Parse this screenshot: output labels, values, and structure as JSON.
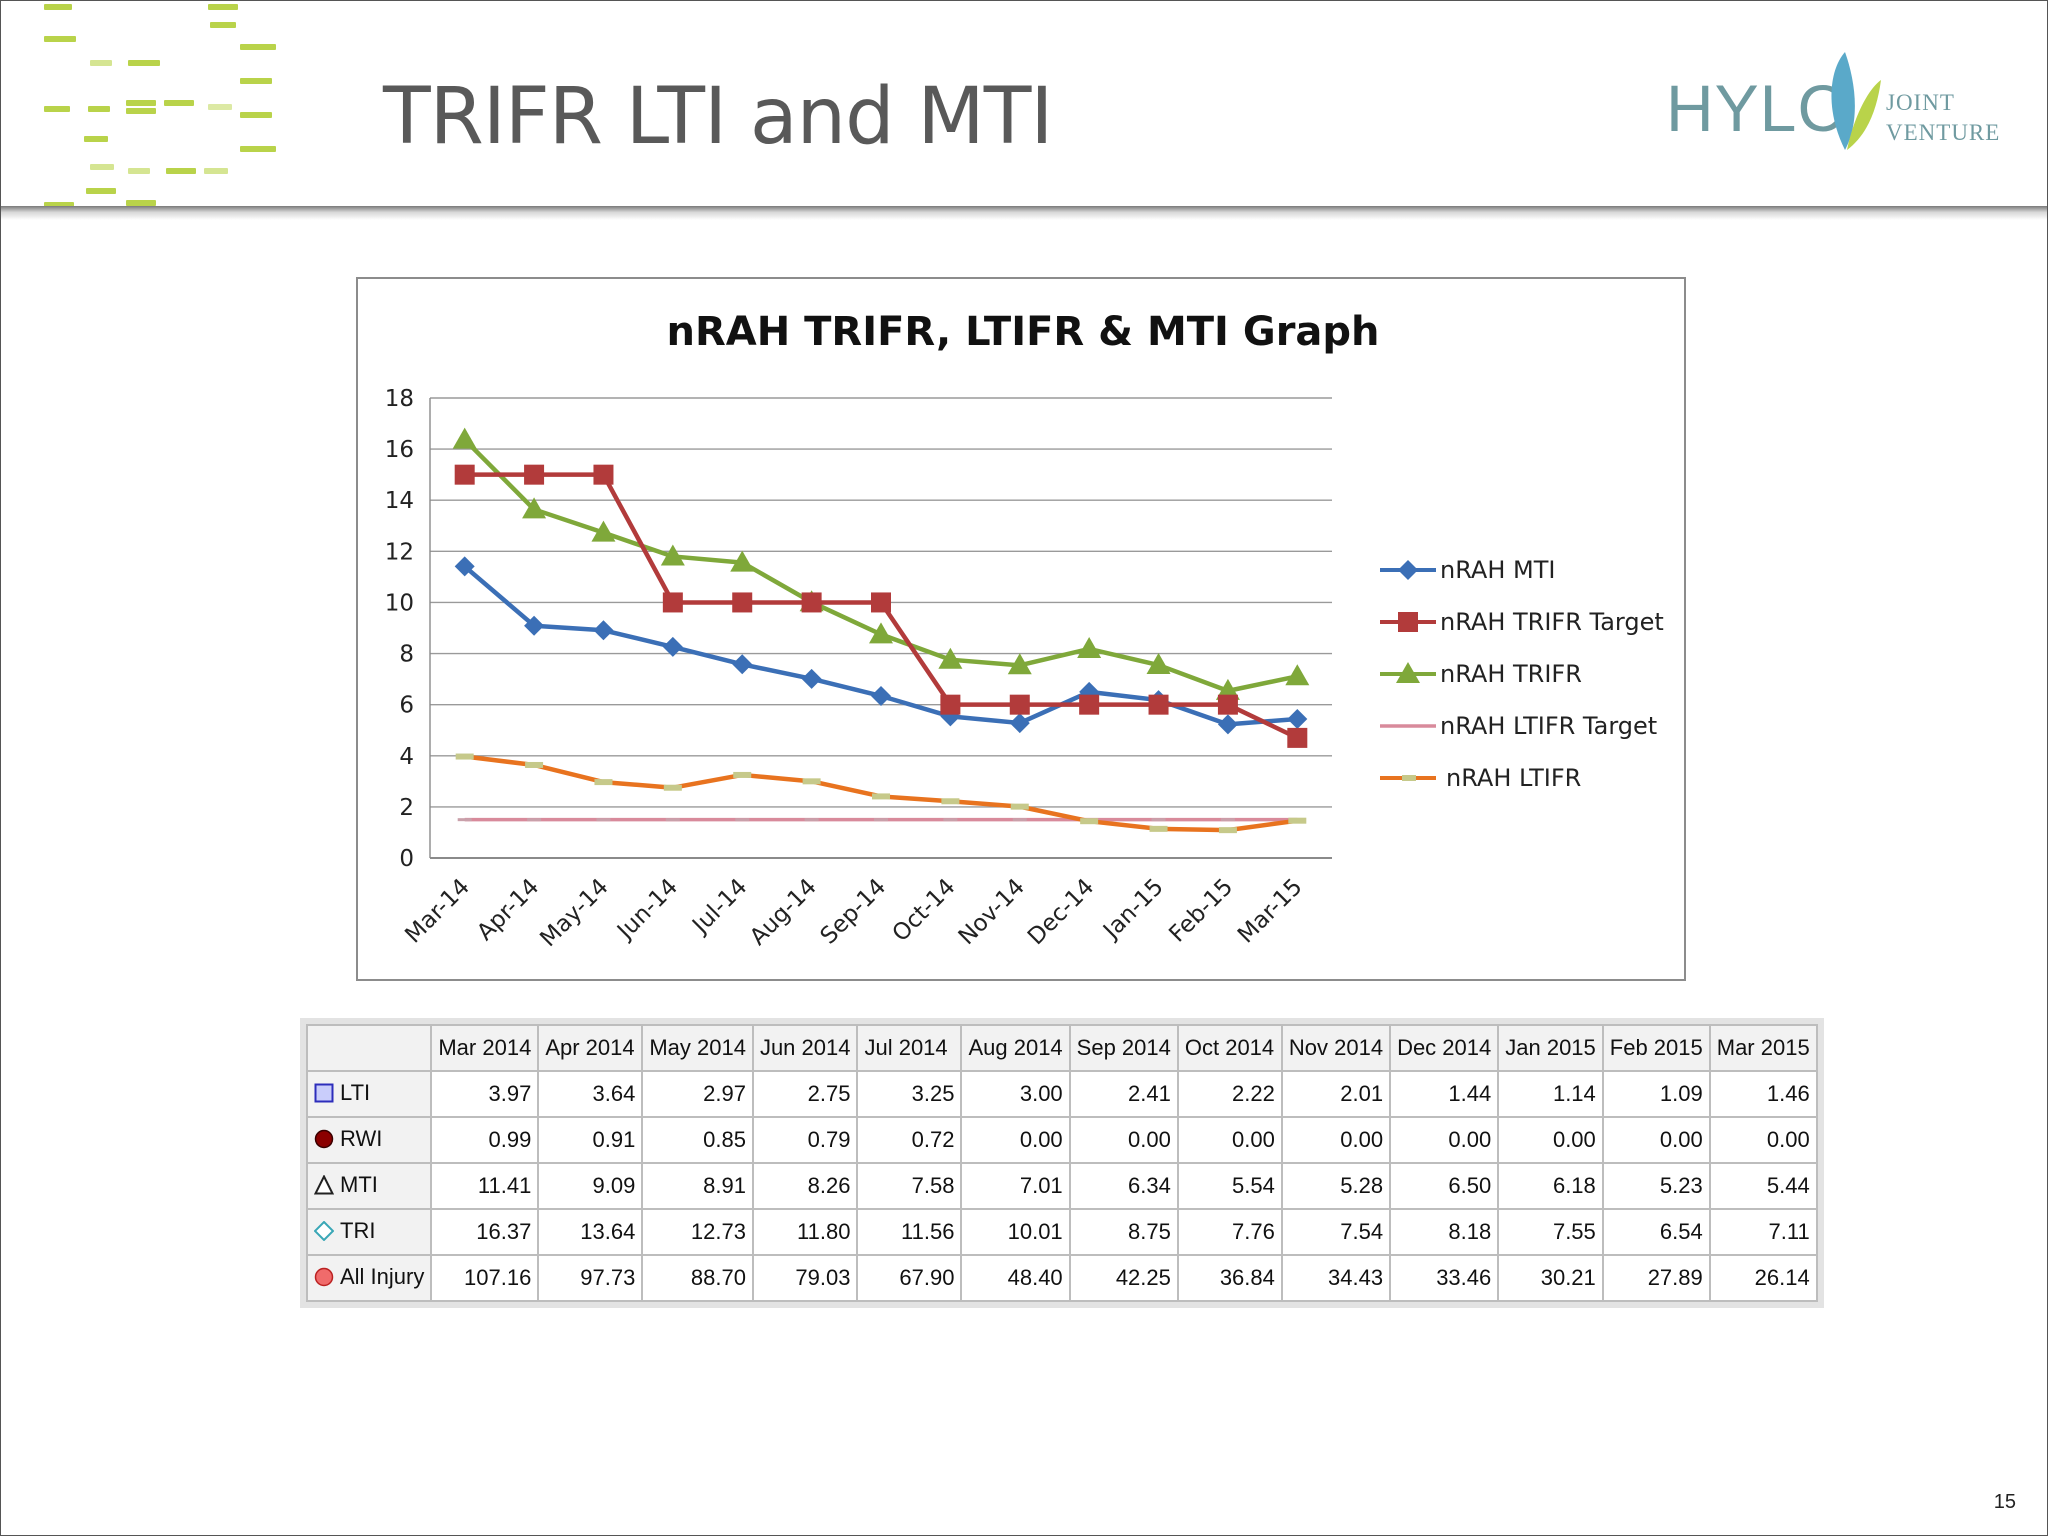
{
  "slide": {
    "title": "TRIFR LTI and MTI",
    "page_number": "15"
  },
  "logo": {
    "main": "HYLC",
    "sub1": "JOINT",
    "sub2": "VENTURE"
  },
  "colors": {
    "mti": "#3b6fb6",
    "trifr_target": "#b23b3b",
    "trifr": "#7fa83a",
    "ltifr_target": "#d88a9b",
    "ltifr": "#e8731f",
    "ltifr_marker": "#c6c98a",
    "deco_green": "#b9d34a",
    "logo_teal": "#6f9aa0"
  },
  "chart_data": {
    "type": "line",
    "title": "nRAH TRIFR, LTIFR & MTI Graph",
    "categories": [
      "Mar-14",
      "Apr-14",
      "May-14",
      "Jun-14",
      "Jul-14",
      "Aug-14",
      "Sep-14",
      "Oct-14",
      "Nov-14",
      "Dec-14",
      "Jan-15",
      "Feb-15",
      "Mar-15"
    ],
    "ylim": [
      0,
      18
    ],
    "yticks": [
      0,
      2,
      4,
      6,
      8,
      10,
      12,
      14,
      16,
      18
    ],
    "grid": true,
    "legend_position": "right",
    "series": [
      {
        "name": "nRAH MTI",
        "marker": "diamond",
        "values": [
          11.41,
          9.09,
          8.91,
          8.26,
          7.58,
          7.01,
          6.34,
          5.54,
          5.28,
          6.5,
          6.18,
          5.23,
          5.44
        ]
      },
      {
        "name": "nRAH TRIFR Target",
        "marker": "square",
        "values": [
          15,
          15,
          15,
          10,
          10,
          10,
          10,
          6,
          6,
          6,
          6,
          6,
          4.7
        ]
      },
      {
        "name": "nRAH TRIFR",
        "marker": "triangle",
        "values": [
          16.37,
          13.64,
          12.73,
          11.8,
          11.56,
          10.01,
          8.75,
          7.76,
          7.54,
          8.18,
          7.55,
          6.54,
          7.11
        ]
      },
      {
        "name": "nRAH LTIFR Target",
        "marker": "none",
        "values": [
          1.5,
          1.5,
          1.5,
          1.5,
          1.5,
          1.5,
          1.5,
          1.5,
          1.5,
          1.5,
          1.5,
          1.5,
          1.5
        ]
      },
      {
        "name": "nRAH LTIFR",
        "marker": "dash",
        "values": [
          3.97,
          3.64,
          2.97,
          2.75,
          3.25,
          3.0,
          2.41,
          2.22,
          2.01,
          1.44,
          1.14,
          1.09,
          1.46
        ]
      }
    ]
  },
  "table": {
    "columns": [
      "Mar 2014",
      "Apr 2014",
      "May 2014",
      "Jun 2014",
      "Jul 2014",
      "Aug 2014",
      "Sep 2014",
      "Oct 2014",
      "Nov 2014",
      "Dec 2014",
      "Jan 2015",
      "Feb 2015",
      "Mar 2015"
    ],
    "rows": [
      {
        "label": "LTI",
        "symbol": "square",
        "values": [
          "3.97",
          "3.64",
          "2.97",
          "2.75",
          "3.25",
          "3.00",
          "2.41",
          "2.22",
          "2.01",
          "1.44",
          "1.14",
          "1.09",
          "1.46"
        ]
      },
      {
        "label": "RWI",
        "symbol": "circle-dark",
        "values": [
          "0.99",
          "0.91",
          "0.85",
          "0.79",
          "0.72",
          "0.00",
          "0.00",
          "0.00",
          "0.00",
          "0.00",
          "0.00",
          "0.00",
          "0.00"
        ]
      },
      {
        "label": "MTI",
        "symbol": "triangle",
        "values": [
          "11.41",
          "9.09",
          "8.91",
          "8.26",
          "7.58",
          "7.01",
          "6.34",
          "5.54",
          "5.28",
          "6.50",
          "6.18",
          "5.23",
          "5.44"
        ]
      },
      {
        "label": "TRI",
        "symbol": "diamond",
        "values": [
          "16.37",
          "13.64",
          "12.73",
          "11.80",
          "11.56",
          "10.01",
          "8.75",
          "7.76",
          "7.54",
          "8.18",
          "7.55",
          "6.54",
          "7.11"
        ]
      },
      {
        "label": "All Injury",
        "symbol": "circle-red",
        "values": [
          "107.16",
          "97.73",
          "88.70",
          "79.03",
          "67.90",
          "48.40",
          "42.25",
          "36.84",
          "34.43",
          "33.46",
          "30.21",
          "27.89",
          "26.14"
        ]
      }
    ]
  }
}
